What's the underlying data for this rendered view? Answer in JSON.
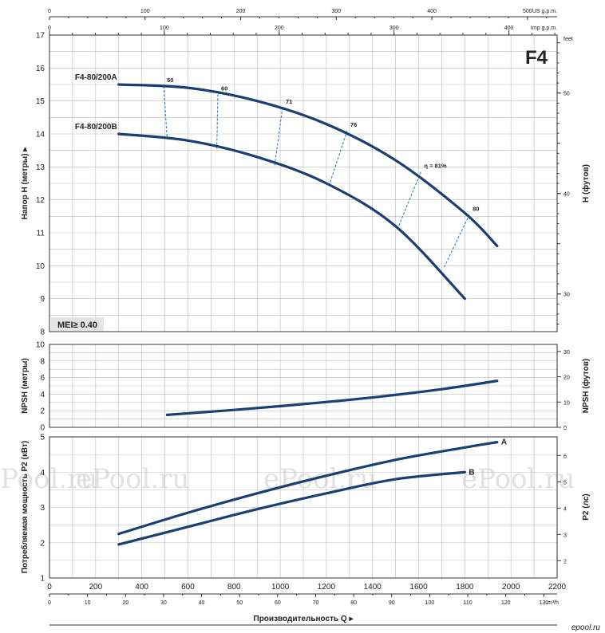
{
  "colors": {
    "curve": "#1b3f74",
    "iso": "#2d7fc4",
    "badge_bg": "#e3e3e3"
  },
  "top_axes": {
    "us_label": "US g.p.m.",
    "us_ticks": [
      "0",
      "100",
      "200",
      "300",
      "400",
      "500"
    ],
    "us_max": 531,
    "imp_label": "Imp g.p.m.",
    "imp_ticks": [
      "0",
      "100",
      "200",
      "300",
      "400"
    ],
    "imp_max": 442
  },
  "watermark": [
    "ePool.ru",
    "ePool.ru",
    "ePool.ru",
    "ePool.ru"
  ],
  "brand": "epool.ru",
  "chart_data": [
    {
      "type": "line",
      "title": "F4",
      "ylabel": "Напор H (метры)",
      "y2label": "H (футов)",
      "y2unit": "feet",
      "ylim": [
        8,
        17
      ],
      "y_ticks": [
        8,
        9,
        10,
        11,
        12,
        13,
        14,
        15,
        16,
        17
      ],
      "y2_ticks": [
        30,
        40,
        50
      ],
      "xlim": [
        0,
        2200
      ],
      "annotation": "MEI≥ 0.40",
      "series": [
        {
          "name": "F4-80/200A",
          "x": [
            300,
            600,
            900,
            1200,
            1500,
            1800,
            1940
          ],
          "y": [
            15.5,
            15.4,
            15.0,
            14.3,
            13.2,
            11.6,
            10.6
          ]
        },
        {
          "name": "F4-80/200B",
          "x": [
            300,
            600,
            900,
            1200,
            1500,
            1800
          ],
          "y": [
            14.0,
            13.8,
            13.3,
            12.5,
            11.2,
            9.0
          ]
        }
      ],
      "efficiency": [
        {
          "label": "50",
          "a": [
            495,
            15.45
          ],
          "b": [
            510,
            13.85
          ]
        },
        {
          "label": "60",
          "a": [
            730,
            15.2
          ],
          "b": [
            725,
            13.55
          ]
        },
        {
          "label": "71",
          "a": [
            1010,
            14.8
          ],
          "b": [
            975,
            13.0
          ]
        },
        {
          "label": "76",
          "a": [
            1290,
            14.1
          ],
          "b": [
            1210,
            12.4
          ]
        },
        {
          "label": "η = 81%",
          "a": [
            1610,
            12.85
          ],
          "b": [
            1510,
            11.15
          ]
        },
        {
          "label": "80",
          "a": [
            1820,
            11.55
          ],
          "b": [
            1710,
            9.95
          ]
        }
      ]
    },
    {
      "type": "line",
      "ylabel": "NPSH (метры)",
      "y2label": "NPSH (футов)",
      "ylim": [
        0,
        10
      ],
      "y_ticks": [
        0,
        2,
        4,
        6,
        8,
        10
      ],
      "y2_ticks": [
        0,
        10,
        20,
        30
      ],
      "xlim": [
        0,
        2200
      ],
      "series": [
        {
          "x": [
            510,
            800,
            1100,
            1400,
            1700,
            1940
          ],
          "y": [
            1.5,
            2.1,
            2.8,
            3.6,
            4.6,
            5.6
          ]
        }
      ]
    },
    {
      "type": "line",
      "ylabel": "Потребляемая мощность P2 (кВт)",
      "y2label": "P2 (лс)",
      "ylim": [
        1,
        5
      ],
      "y_ticks": [
        1,
        2,
        3,
        4,
        5
      ],
      "y2_ticks": [
        2,
        3,
        4,
        5,
        6
      ],
      "xlim": [
        0,
        2200
      ],
      "xlabel": "Производительность Q",
      "x_ticks": [
        0,
        200,
        400,
        600,
        800,
        1000,
        1200,
        1400,
        1600,
        1800,
        2000,
        2200
      ],
      "x2_ticks": [
        0,
        10,
        20,
        30,
        40,
        50,
        60,
        70,
        80,
        90,
        100,
        110,
        120,
        130
      ],
      "x2unit": "m³/h",
      "series": [
        {
          "name": "A",
          "x": [
            300,
            600,
            900,
            1200,
            1500,
            1800,
            1940
          ],
          "y": [
            2.25,
            2.85,
            3.4,
            3.9,
            4.35,
            4.7,
            4.85
          ]
        },
        {
          "name": "B",
          "x": [
            300,
            600,
            900,
            1200,
            1500,
            1800
          ],
          "y": [
            1.95,
            2.45,
            2.95,
            3.4,
            3.8,
            4.0
          ]
        }
      ]
    }
  ]
}
